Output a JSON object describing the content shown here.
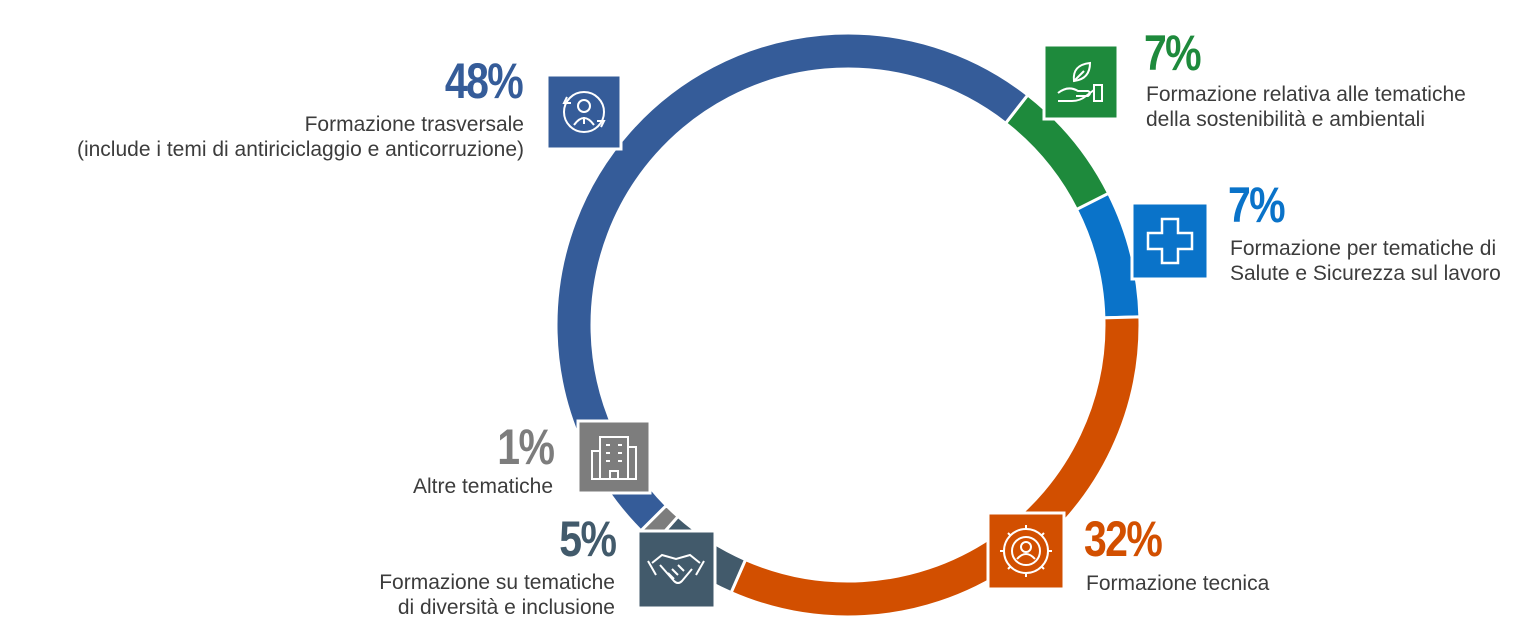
{
  "chart_data": {
    "type": "pie",
    "variant": "donut",
    "slices": [
      {
        "label": "Formazione trasversale",
        "label_line2": "(include i temi di antiriciclaggio e anticorruzione)",
        "value": 48,
        "value_label": "48%",
        "color": "#355C99",
        "icon": "person-cycle-icon"
      },
      {
        "label": "Formazione relativa alle tematiche",
        "label_line2": "della sostenibilità e ambientali",
        "value": 7,
        "value_label": "7%",
        "color": "#1E8A3C",
        "icon": "leaf-hand-icon"
      },
      {
        "label": "Formazione per tematiche di",
        "label_line2": "Salute e Sicurezza sul lavoro",
        "value": 7,
        "value_label": "7%",
        "color": "#0A73C9",
        "icon": "medical-cross-icon"
      },
      {
        "label": "Formazione tecnica",
        "label_line2": "",
        "value": 32,
        "value_label": "32%",
        "color": "#D24F00",
        "icon": "gear-person-icon"
      },
      {
        "label": "Formazione su tematiche",
        "label_line2": "di diversità e inclusione",
        "value": 5,
        "value_label": "5%",
        "color": "#425A6B",
        "icon": "handshake-icon"
      },
      {
        "label": "Altre tematiche",
        "label_line2": "",
        "value": 1,
        "value_label": "1%",
        "color": "#7D7D7D",
        "icon": "building-icon"
      }
    ]
  }
}
